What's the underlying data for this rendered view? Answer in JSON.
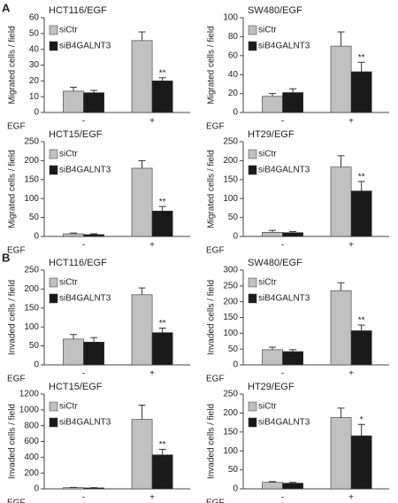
{
  "panel_labels": [
    "A",
    "B"
  ],
  "chart_data": [
    {
      "type": "bar",
      "title": "HCT116/EGF",
      "ylabel": "Migrated cells / field",
      "xlabel": "EGF",
      "categories": [
        "-",
        "+"
      ],
      "series": [
        {
          "name": "siCtr",
          "color": "#c0c0c0",
          "values": [
            13.5,
            45.5
          ],
          "errors": [
            2.5,
            5.5
          ]
        },
        {
          "name": "siB4GALNT3",
          "color": "#1a1a1a",
          "values": [
            12.5,
            20
          ],
          "errors": [
            1.5,
            2
          ],
          "annotations": [
            null,
            "**"
          ]
        }
      ],
      "ylim": [
        0,
        60
      ],
      "yticks": [
        0,
        10,
        20,
        30,
        40,
        50,
        60
      ]
    },
    {
      "type": "bar",
      "title": "SW480/EGF",
      "ylabel": "Migrated cells / field",
      "xlabel": "EGF",
      "categories": [
        "-",
        "+"
      ],
      "series": [
        {
          "name": "siCtr",
          "color": "#c0c0c0",
          "values": [
            17,
            70
          ],
          "errors": [
            3,
            15
          ]
        },
        {
          "name": "siB4GALNT3",
          "color": "#1a1a1a",
          "values": [
            21,
            43
          ],
          "errors": [
            4,
            10
          ],
          "annotations": [
            null,
            "**"
          ]
        }
      ],
      "ylim": [
        0,
        100
      ],
      "yticks": [
        0,
        20,
        40,
        60,
        80,
        100
      ]
    },
    {
      "type": "bar",
      "title": "HCT15/EGF",
      "ylabel": "Migrated cells / field",
      "xlabel": "EGF",
      "categories": [
        "-",
        "+"
      ],
      "series": [
        {
          "name": "siCtr",
          "color": "#c0c0c0",
          "values": [
            7,
            180
          ],
          "errors": [
            2,
            20
          ]
        },
        {
          "name": "siB4GALNT3",
          "color": "#1a1a1a",
          "values": [
            5,
            67
          ],
          "errors": [
            2,
            12
          ],
          "annotations": [
            null,
            "**"
          ]
        }
      ],
      "ylim": [
        0,
        250
      ],
      "yticks": [
        0,
        50,
        100,
        150,
        200,
        250
      ]
    },
    {
      "type": "bar",
      "title": "HT29/EGF",
      "ylabel": "Migrated cells / field",
      "xlabel": "EGF",
      "categories": [
        "-",
        "+"
      ],
      "series": [
        {
          "name": "siCtr",
          "color": "#c0c0c0",
          "values": [
            11,
            183
          ],
          "errors": [
            5,
            30
          ]
        },
        {
          "name": "siB4GALNT3",
          "color": "#1a1a1a",
          "values": [
            10,
            120
          ],
          "errors": [
            3,
            25
          ],
          "annotations": [
            null,
            "**"
          ]
        }
      ],
      "ylim": [
        0,
        250
      ],
      "yticks": [
        0,
        50,
        100,
        150,
        200,
        250
      ]
    },
    {
      "type": "bar",
      "title": "HCT116/EGF",
      "ylabel": "Invaded cells / field",
      "xlabel": "EGF",
      "categories": [
        "-",
        "+"
      ],
      "series": [
        {
          "name": "siCtr",
          "color": "#c0c0c0",
          "values": [
            68,
            185
          ],
          "errors": [
            12,
            18
          ]
        },
        {
          "name": "siB4GALNT3",
          "color": "#1a1a1a",
          "values": [
            60,
            85
          ],
          "errors": [
            12,
            12
          ],
          "annotations": [
            null,
            "**"
          ]
        }
      ],
      "ylim": [
        0,
        250
      ],
      "yticks": [
        0,
        50,
        100,
        150,
        200,
        250
      ]
    },
    {
      "type": "bar",
      "title": "SW480/EGF",
      "ylabel": "Invaded cells / field",
      "xlabel": "EGF",
      "categories": [
        "-",
        "+"
      ],
      "series": [
        {
          "name": "siCtr",
          "color": "#c0c0c0",
          "values": [
            48,
            235
          ],
          "errors": [
            8,
            25
          ]
        },
        {
          "name": "siB4GALNT3",
          "color": "#1a1a1a",
          "values": [
            42,
            108
          ],
          "errors": [
            6,
            18
          ],
          "annotations": [
            null,
            "**"
          ]
        }
      ],
      "ylim": [
        0,
        300
      ],
      "yticks": [
        0,
        50,
        100,
        150,
        200,
        250,
        300
      ]
    },
    {
      "type": "bar",
      "title": "HCT15/EGF",
      "ylabel": "Invaded cells / field",
      "xlabel": "EGF",
      "categories": [
        "-",
        "+"
      ],
      "series": [
        {
          "name": "siCtr",
          "color": "#c0c0c0",
          "values": [
            15,
            880
          ],
          "errors": [
            3,
            180
          ]
        },
        {
          "name": "siB4GALNT3",
          "color": "#1a1a1a",
          "values": [
            12,
            430
          ],
          "errors": [
            3,
            70
          ],
          "annotations": [
            null,
            "**"
          ]
        }
      ],
      "ylim": [
        0,
        1200
      ],
      "yticks": [
        0,
        200,
        400,
        600,
        800,
        1000,
        1200
      ]
    },
    {
      "type": "bar",
      "title": "HT29/EGF",
      "ylabel": "Invaded cells / field",
      "xlabel": "EGF",
      "categories": [
        "-",
        "+"
      ],
      "series": [
        {
          "name": "siCtr",
          "color": "#c0c0c0",
          "values": [
            17,
            188
          ],
          "errors": [
            2,
            25
          ]
        },
        {
          "name": "siB4GALNT3",
          "color": "#1a1a1a",
          "values": [
            15,
            140
          ],
          "errors": [
            2,
            30
          ],
          "annotations": [
            null,
            "*"
          ]
        }
      ],
      "ylim": [
        0,
        250
      ],
      "yticks": [
        0,
        50,
        100,
        150,
        200,
        250
      ]
    }
  ]
}
